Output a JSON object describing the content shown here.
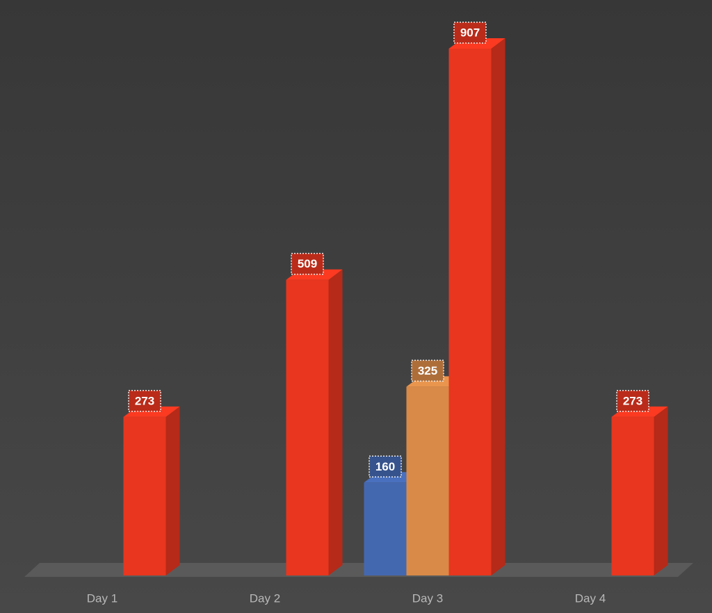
{
  "chart_data": {
    "type": "bar3d",
    "categories": [
      "Day 1",
      "Day 2",
      "Day 3",
      "Day 4"
    ],
    "series": [
      {
        "color": "#4468b0",
        "values": [
          null,
          null,
          160,
          null
        ]
      },
      {
        "color": "#d98a48",
        "values": [
          null,
          null,
          325,
          null
        ]
      },
      {
        "color": "#e8361f",
        "values": [
          273,
          509,
          907,
          273
        ]
      }
    ]
  }
}
